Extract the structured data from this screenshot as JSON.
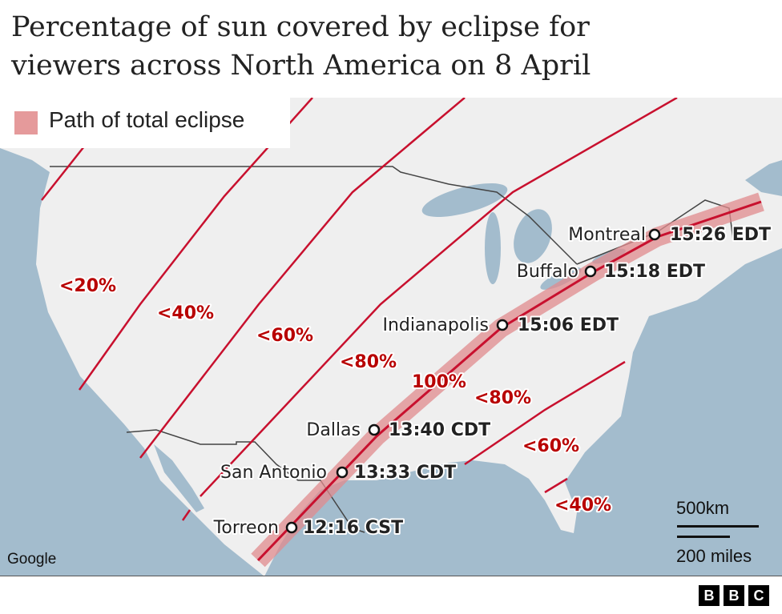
{
  "title": "Percentage of sun covered by eclipse for viewers across North America on 8 April",
  "title_lines": [
    "Percentage of sun covered by eclipse for",
    "viewers across North America on 8 April"
  ],
  "legend": {
    "label": "Path of total eclipse",
    "color": "#e59a9b"
  },
  "colors": {
    "ocean": "#a3bccd",
    "land": "#efefef",
    "line": "#c8102e",
    "path_band": "#e08b8e",
    "label_red": "#b80000"
  },
  "zones": [
    "<20%",
    "<40%",
    "<60%",
    "<80%",
    "100%",
    "<80%",
    "<60%",
    "<40%"
  ],
  "cities": [
    {
      "name": "Montreal",
      "time": "15:26 EDT"
    },
    {
      "name": "Buffalo",
      "time": "15:18 EDT"
    },
    {
      "name": "Indianapolis",
      "time": "15:06 EDT"
    },
    {
      "name": "Dallas",
      "time": "13:40 CDT"
    },
    {
      "name": "San Antonio",
      "time": "13:33 CDT"
    },
    {
      "name": "Torreon",
      "time": "12:16 CST"
    }
  ],
  "attribution": "Google",
  "scale": {
    "km": "500km",
    "miles": "200 miles"
  },
  "brand": [
    "B",
    "B",
    "C"
  ]
}
